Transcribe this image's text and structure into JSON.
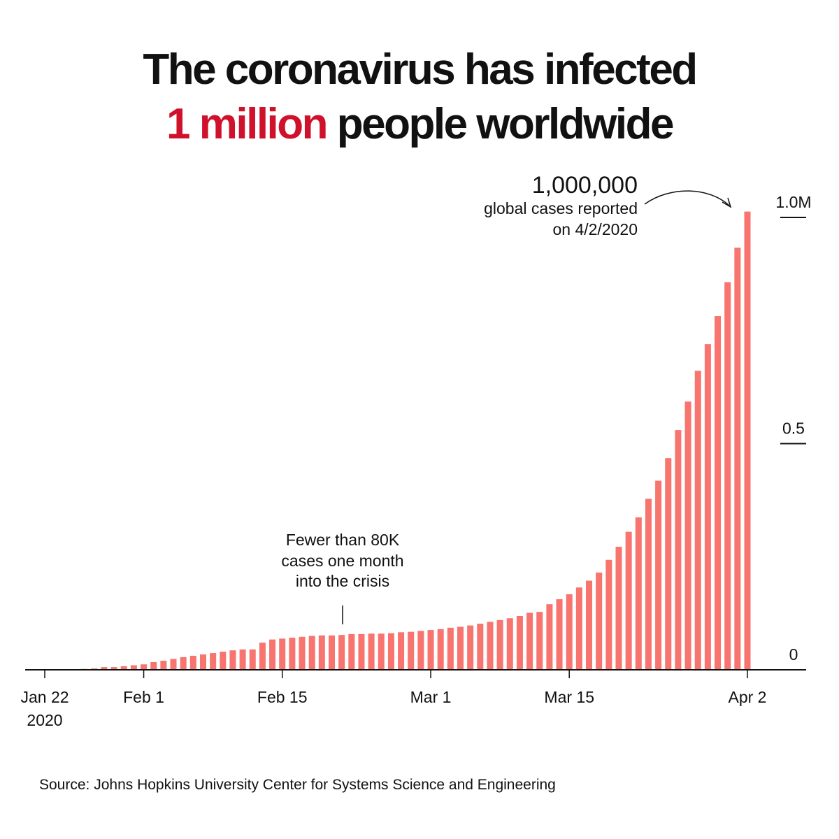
{
  "chart_data": {
    "type": "bar",
    "title_line1": "The coronavirus has infected",
    "title_highlight": "1 million",
    "title_rest": "people worldwide",
    "annotation_top": {
      "headline": "1,000,000",
      "lines": [
        "global cases reported",
        "on 4/2/2020"
      ]
    },
    "annotation_mid": [
      "Fewer than 80K",
      "cases one month",
      "into the crisis"
    ],
    "source": "Source: Johns Hopkins University Center for Systems Science and Engineering",
    "x_year": "2020",
    "categories": [
      "Jan 22",
      null,
      null,
      null,
      null,
      null,
      null,
      null,
      null,
      null,
      "Feb 1",
      null,
      null,
      null,
      null,
      null,
      null,
      null,
      null,
      null,
      null,
      null,
      null,
      null,
      "Feb 15",
      null,
      null,
      null,
      null,
      null,
      null,
      null,
      null,
      null,
      null,
      null,
      null,
      null,
      null,
      "Mar 1",
      null,
      null,
      null,
      null,
      null,
      null,
      null,
      null,
      null,
      null,
      null,
      null,
      null,
      "Mar 15",
      null,
      null,
      null,
      null,
      null,
      null,
      null,
      null,
      null,
      null,
      null,
      null,
      null,
      null,
      null,
      null,
      null,
      "Apr 2"
    ],
    "values": [
      0.001,
      0.001,
      0.001,
      0.001,
      0.002,
      0.003,
      0.006,
      0.006,
      0.008,
      0.01,
      0.012,
      0.017,
      0.02,
      0.024,
      0.028,
      0.031,
      0.034,
      0.037,
      0.04,
      0.043,
      0.045,
      0.045,
      0.06,
      0.067,
      0.069,
      0.071,
      0.073,
      0.075,
      0.076,
      0.076,
      0.077,
      0.079,
      0.079,
      0.08,
      0.08,
      0.081,
      0.083,
      0.084,
      0.086,
      0.088,
      0.09,
      0.093,
      0.095,
      0.098,
      0.102,
      0.106,
      0.11,
      0.114,
      0.119,
      0.126,
      0.128,
      0.145,
      0.156,
      0.167,
      0.182,
      0.197,
      0.215,
      0.243,
      0.272,
      0.305,
      0.337,
      0.378,
      0.418,
      0.468,
      0.53,
      0.593,
      0.661,
      0.72,
      0.782,
      0.857,
      0.933,
      1.013
    ],
    "color": "#f7746f",
    "highlight_color": "#d0112b",
    "ylim": [
      0,
      1
    ],
    "yticks": [
      0,
      0.5,
      {
        "value": 1,
        "label": "1.0M"
      }
    ]
  }
}
